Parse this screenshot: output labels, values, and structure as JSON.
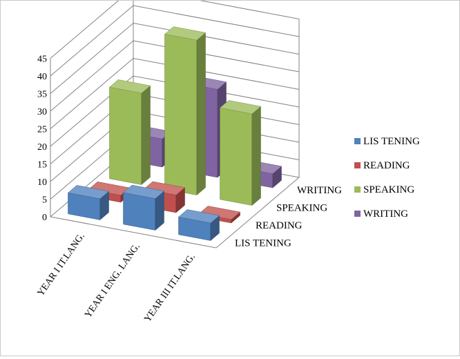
{
  "chart_data": {
    "type": "bar",
    "style": "3d-column",
    "categories": [
      "YEAR I IT.LANG.",
      "YEAR I ENG. LANG.",
      "YEAR III IT.LANG."
    ],
    "series": [
      {
        "name": "LIS TENING",
        "values": [
          6,
          9,
          5
        ],
        "color": "#4F81BD"
      },
      {
        "name": "READING",
        "values": [
          2,
          5,
          1
        ],
        "color": "#C0504D"
      },
      {
        "name": "SPEAKING",
        "values": [
          26,
          44,
          26
        ],
        "color": "#9BBB59"
      },
      {
        "name": "WRITING",
        "values": [
          8,
          25,
          4
        ],
        "color": "#8064A2"
      }
    ],
    "depth_labels": [
      "LIS TENING",
      "READING",
      "SPEAKING",
      "WRITING"
    ],
    "yticks": [
      0,
      5,
      10,
      15,
      20,
      25,
      30,
      35,
      40,
      45
    ],
    "ylim": [
      0,
      45
    ],
    "grid": true,
    "legend_position": "right"
  }
}
